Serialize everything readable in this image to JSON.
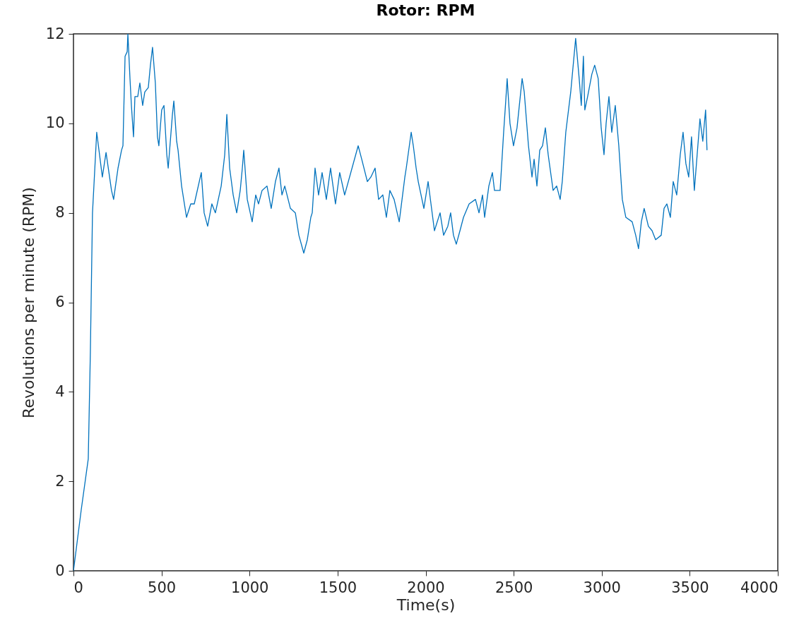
{
  "chart_data": {
    "type": "line",
    "title": "Rotor: RPM",
    "xlabel": "Time(s)",
    "ylabel": "Revolutions per minute (RPM)",
    "xlim": [
      0,
      4000
    ],
    "xticks": [
      0,
      500,
      1000,
      1500,
      2000,
      2500,
      3000,
      3500,
      4000
    ],
    "ylim": [
      0,
      12
    ],
    "yticks": [
      0,
      2,
      4,
      6,
      8,
      10,
      12
    ],
    "grid": false,
    "marker": "none",
    "line_style": "solid",
    "series": [
      {
        "color": "#0072bd",
        "x": [
          0,
          44,
          84,
          96,
          108,
          132,
          164,
          185,
          216,
          228,
          253,
          273,
          281,
          293,
          305,
          309,
          321,
          329,
          341,
          349,
          365,
          377,
          393,
          405,
          425,
          437,
          449,
          465,
          477,
          485,
          501,
          514,
          530,
          538,
          562,
          570,
          586,
          594,
          614,
          642,
          666,
          686,
          726,
          742,
          762,
          786,
          806,
          839,
          859,
          871,
          887,
          907,
          927,
          947,
          959,
          967,
          987,
          1015,
          1035,
          1051,
          1071,
          1099,
          1123,
          1147,
          1167,
          1184,
          1200,
          1232,
          1260,
          1280,
          1308,
          1328,
          1348,
          1356,
          1372,
          1392,
          1412,
          1436,
          1460,
          1488,
          1512,
          1540,
          1617,
          1637,
          1669,
          1689,
          1713,
          1733,
          1757,
          1777,
          1797,
          1821,
          1850,
          1882,
          1890,
          1918,
          1930,
          1946,
          1958,
          1990,
          2014,
          2050,
          2082,
          2102,
          2126,
          2142,
          2158,
          2174,
          2195,
          2215,
          2247,
          2283,
          2303,
          2323,
          2335,
          2359,
          2379,
          2391,
          2423,
          2443,
          2455,
          2463,
          2479,
          2499,
          2519,
          2548,
          2560,
          2584,
          2604,
          2616,
          2632,
          2648,
          2664,
          2680,
          2696,
          2724,
          2744,
          2764,
          2776,
          2796,
          2824,
          2852,
          2872,
          2884,
          2896,
          2904,
          2920,
          2944,
          2960,
          2980,
          2997,
          3013,
          3025,
          3041,
          3057,
          3077,
          3097,
          3117,
          3137,
          3173,
          3193,
          3209,
          3225,
          3241,
          3265,
          3286,
          3306,
          3338,
          3354,
          3370,
          3390,
          3406,
          3426,
          3446,
          3462,
          3478,
          3494,
          3510,
          3526,
          3542,
          3558,
          3574,
          3590,
          3598
        ],
        "values": [
          0,
          1.36,
          2.5,
          4.9,
          8.0,
          9.8,
          8.8,
          9.35,
          8.5,
          8.3,
          9.0,
          9.4,
          9.5,
          11.5,
          11.6,
          12.0,
          11.0,
          10.4,
          9.7,
          10.6,
          10.6,
          10.9,
          10.4,
          10.7,
          10.8,
          11.3,
          11.7,
          10.9,
          9.7,
          9.5,
          10.3,
          10.4,
          9.3,
          9.0,
          10.2,
          10.5,
          9.6,
          9.4,
          8.6,
          7.9,
          8.2,
          8.2,
          8.9,
          8.0,
          7.7,
          8.2,
          8.0,
          8.6,
          9.3,
          10.2,
          9.0,
          8.4,
          8.0,
          8.5,
          9.0,
          9.4,
          8.3,
          7.8,
          8.4,
          8.2,
          8.5,
          8.6,
          8.1,
          8.7,
          9.0,
          8.4,
          8.6,
          8.1,
          8.0,
          7.5,
          7.1,
          7.4,
          7.9,
          8.0,
          9.0,
          8.4,
          8.9,
          8.3,
          9.0,
          8.2,
          8.9,
          8.4,
          9.5,
          9.2,
          8.7,
          8.8,
          9.0,
          8.3,
          8.4,
          7.9,
          8.5,
          8.3,
          7.8,
          8.8,
          9.0,
          9.8,
          9.5,
          9.0,
          8.7,
          8.1,
          8.7,
          7.6,
          8.0,
          7.5,
          7.7,
          8.0,
          7.5,
          7.3,
          7.6,
          7.9,
          8.2,
          8.3,
          8.0,
          8.4,
          7.9,
          8.6,
          8.9,
          8.5,
          8.5,
          9.8,
          10.5,
          11.0,
          10.0,
          9.5,
          9.9,
          11.0,
          10.7,
          9.5,
          8.8,
          9.2,
          8.6,
          9.4,
          9.5,
          9.9,
          9.3,
          8.5,
          8.6,
          8.3,
          8.7,
          9.8,
          10.7,
          11.9,
          11.0,
          10.4,
          11.5,
          10.3,
          10.6,
          11.1,
          11.3,
          11.0,
          9.9,
          9.3,
          10.0,
          10.6,
          9.8,
          10.4,
          9.5,
          8.3,
          7.9,
          7.8,
          7.5,
          7.2,
          7.8,
          8.1,
          7.7,
          7.6,
          7.4,
          7.5,
          8.1,
          8.2,
          7.9,
          8.7,
          8.4,
          9.3,
          9.8,
          9.1,
          8.8,
          9.7,
          8.5,
          9.3,
          10.1,
          9.6,
          10.3,
          9.4
        ]
      }
    ]
  }
}
